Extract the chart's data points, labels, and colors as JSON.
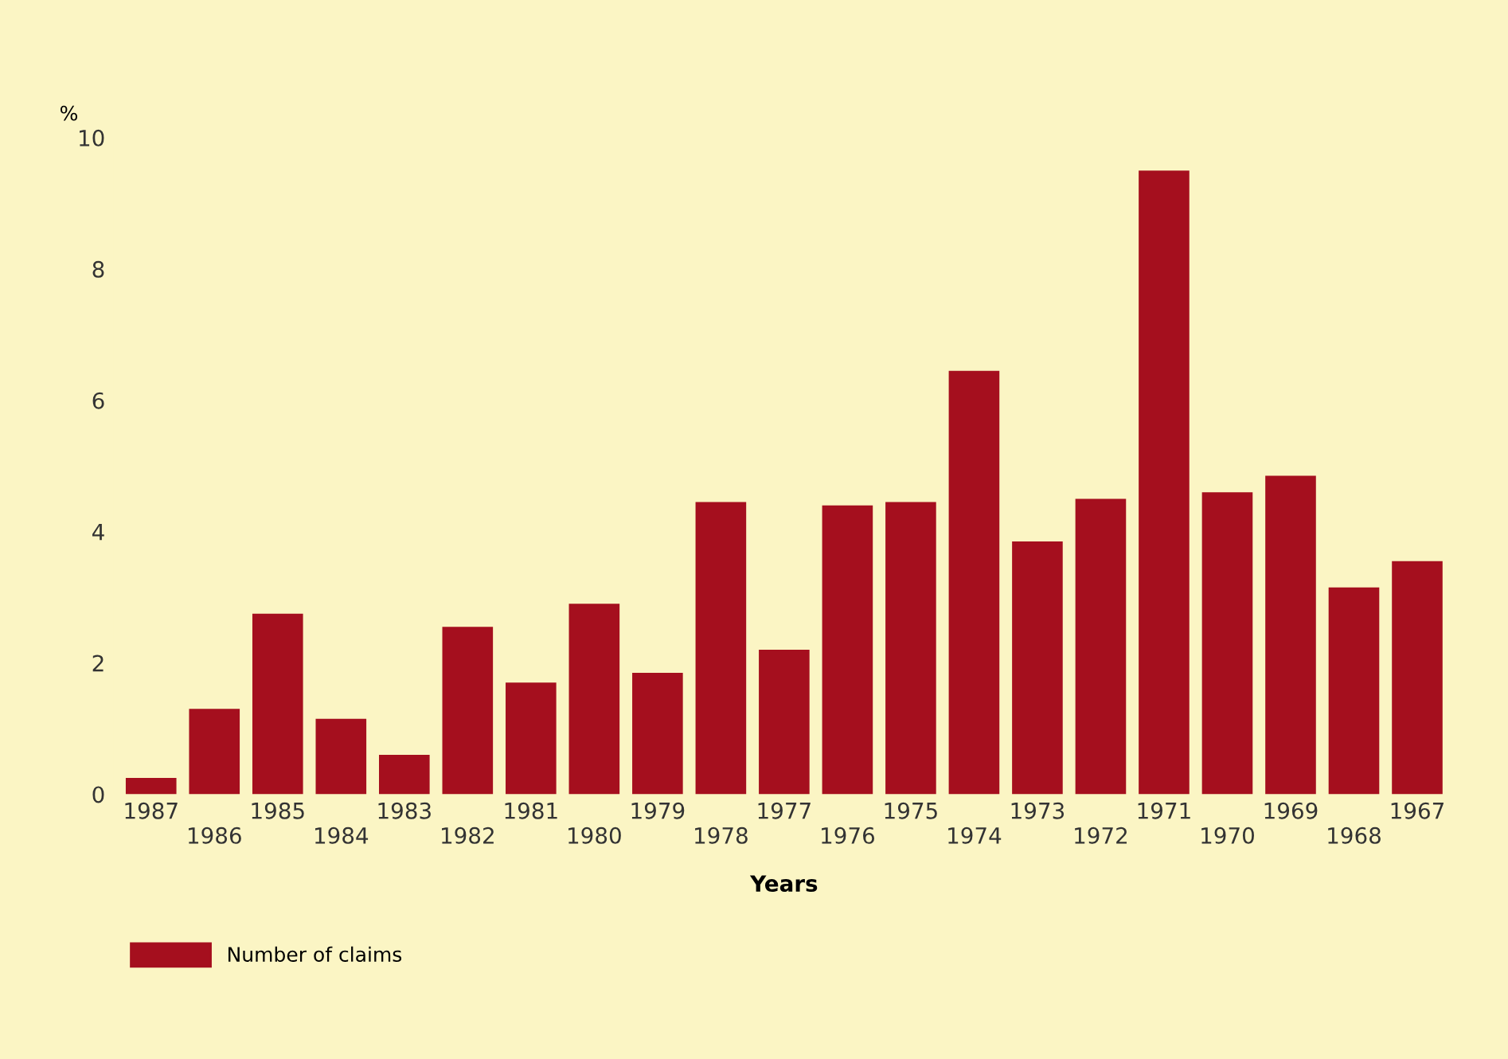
{
  "chart_data": {
    "type": "bar",
    "xlabel": "Years",
    "ylabel": "%",
    "categories": [
      "1987",
      "1986",
      "1985",
      "1984",
      "1983",
      "1982",
      "1981",
      "1980",
      "1979",
      "1978",
      "1977",
      "1976",
      "1975",
      "1974",
      "1973",
      "1972",
      "1971",
      "1970",
      "1969",
      "1968",
      "1967"
    ],
    "series": [
      {
        "name": "Number of claims",
        "color": "#a50f1e",
        "values": [
          0.25,
          1.3,
          2.75,
          1.15,
          0.6,
          2.55,
          1.7,
          2.9,
          1.85,
          4.45,
          2.2,
          4.4,
          4.45,
          6.45,
          3.85,
          4.5,
          9.5,
          4.6,
          4.85,
          3.15,
          3.55
        ]
      }
    ],
    "ylim": [
      0,
      10
    ],
    "yticks": [
      0,
      2,
      4,
      6,
      8,
      10
    ],
    "grid": false,
    "legend": "bottom left"
  }
}
